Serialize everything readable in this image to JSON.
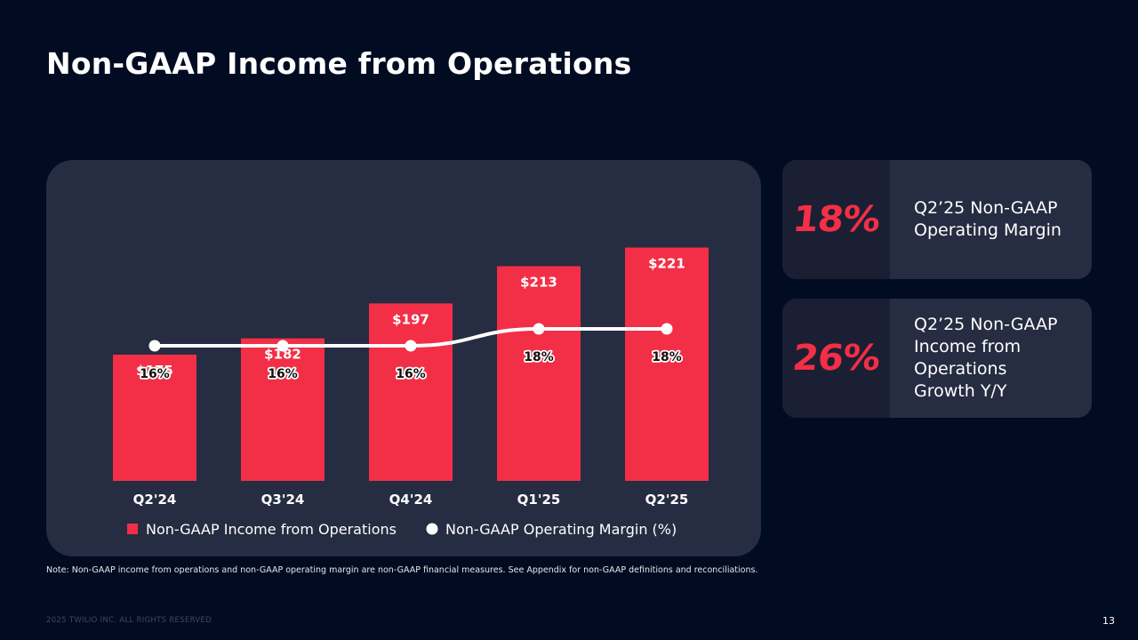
{
  "title": "Non-GAAP Income from Operations",
  "colors": {
    "background": "#010b22",
    "card": "#262c41",
    "accent": "#f22f46",
    "line": "#ffffff"
  },
  "chart_data": {
    "type": "bar",
    "categories": [
      "Q2'24",
      "Q3'24",
      "Q4'24",
      "Q1'25",
      "Q2'25"
    ],
    "series": [
      {
        "name": "Non-GAAP Income from Operations",
        "kind": "bar",
        "values": [
          175,
          182,
          197,
          213,
          221
        ],
        "labels": [
          "$175",
          "$182",
          "$197",
          "$213",
          "$221"
        ],
        "color": "#f22f46"
      },
      {
        "name": "Non-GAAP Operating Margin (%)",
        "kind": "line",
        "values": [
          16,
          16,
          16,
          18,
          18
        ],
        "labels": [
          "16%",
          "16%",
          "16%",
          "18%",
          "18%"
        ],
        "color": "#ffffff"
      }
    ],
    "legend_position": "bottom",
    "grid": false
  },
  "stats": [
    {
      "value": "18%",
      "lines": [
        "Q2’25 Non-GAAP",
        "Operating Margin"
      ]
    },
    {
      "value": "26%",
      "lines": [
        "Q2’25 Non-GAAP",
        "Income from",
        "Operations",
        "Growth Y/Y"
      ]
    }
  ],
  "note": "Note: Non-GAAP income from operations and non-GAAP operating margin are non-GAAP financial measures. See Appendix for non-GAAP definitions and reconciliations.",
  "footer": "2025 TWILIO INC. ALL RIGHTS RESERVED",
  "page_number": "13"
}
